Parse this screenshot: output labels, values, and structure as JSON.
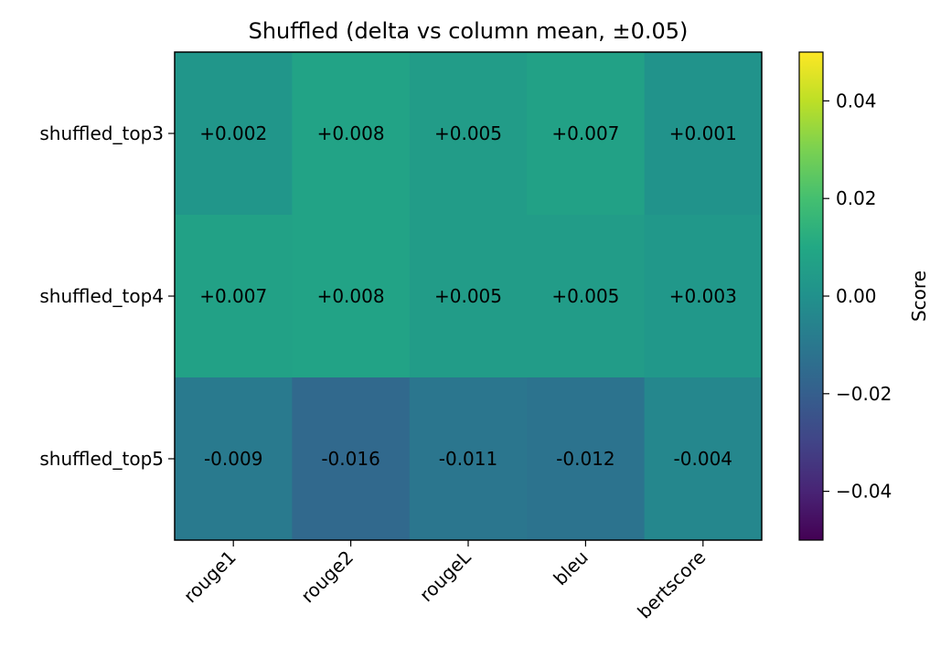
{
  "chart_data": {
    "type": "heatmap",
    "title": "Shuffled (delta vs column mean, ±0.05)",
    "rows": [
      "shuffled_top3",
      "shuffled_top4",
      "shuffled_top5"
    ],
    "columns": [
      "rouge1",
      "rouge2",
      "rougeL",
      "bleu",
      "bertscore"
    ],
    "values": [
      [
        0.002,
        0.008,
        0.005,
        0.007,
        0.001
      ],
      [
        0.007,
        0.008,
        0.005,
        0.005,
        0.003
      ],
      [
        -0.009,
        -0.016,
        -0.011,
        -0.012,
        -0.004
      ]
    ],
    "cell_labels": [
      [
        "+0.002",
        "+0.008",
        "+0.005",
        "+0.007",
        "+0.001"
      ],
      [
        "+0.007",
        "+0.008",
        "+0.005",
        "+0.005",
        "+0.003"
      ],
      [
        "-0.009",
        "-0.016",
        "-0.011",
        "-0.012",
        "-0.004"
      ]
    ],
    "colorbar": {
      "label": "Score",
      "range": [
        -0.05,
        0.05
      ],
      "colormap": "viridis",
      "ticks": [
        0.04,
        0.02,
        0.0,
        -0.02,
        -0.04
      ],
      "tick_labels": [
        "0.04",
        "0.02",
        "0.00",
        "−0.02",
        "−0.04"
      ]
    }
  }
}
